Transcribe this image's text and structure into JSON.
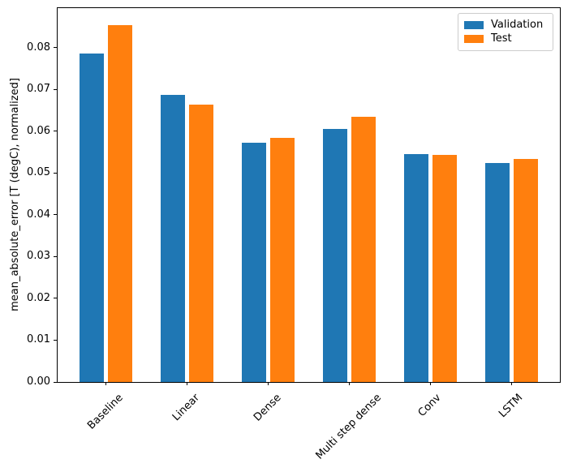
{
  "figure": {
    "background": "#ffffff",
    "axes_border_color": "#000000",
    "text_color": "#000000"
  },
  "legend": {
    "position": "upper right",
    "border_color": "#cccccc",
    "items": [
      {
        "label": "Validation",
        "color": "#1f77b4"
      },
      {
        "label": "Test",
        "color": "#ff7f0e"
      }
    ]
  },
  "chart_data": {
    "type": "bar",
    "title": "",
    "xlabel": "",
    "ylabel": "mean_absolute_error [T (degC), normalized]",
    "categories": [
      "Baseline",
      "Linear",
      "Dense",
      "Multi step dense",
      "Conv",
      "LSTM"
    ],
    "series": [
      {
        "name": "Validation",
        "color": "#1f77b4",
        "values": [
          0.0785,
          0.0686,
          0.0572,
          0.0606,
          0.0545,
          0.0524
        ]
      },
      {
        "name": "Test",
        "color": "#ff7f0e",
        "values": [
          0.0853,
          0.0664,
          0.0583,
          0.0634,
          0.0543,
          0.0533
        ]
      }
    ],
    "ylim": [
      0,
      0.0896
    ],
    "xlim": [
      -0.6,
      5.6
    ],
    "yticks": [
      0.0,
      0.01,
      0.02,
      0.03,
      0.04,
      0.05,
      0.06,
      0.07,
      0.08
    ],
    "ytick_labels": [
      "0.00",
      "0.01",
      "0.02",
      "0.03",
      "0.04",
      "0.05",
      "0.06",
      "0.07",
      "0.08"
    ],
    "xtick_rotation": 45,
    "bar_width": 0.3,
    "bar_offsets": [
      -0.175,
      0.175
    ],
    "grid": false,
    "legend_position": "upper right"
  }
}
